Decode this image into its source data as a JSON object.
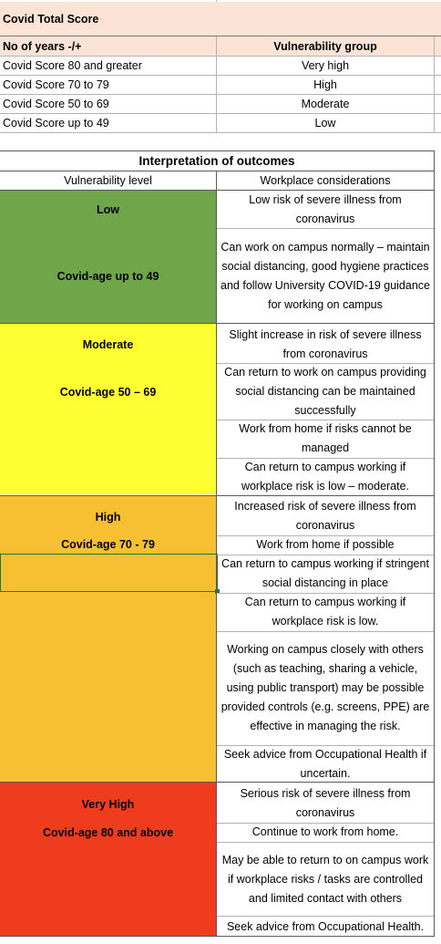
{
  "score_table": {
    "title": "Covid Total Score",
    "col1_header": "No of years -/+",
    "col2_header": "Vulnerability group",
    "rows": [
      {
        "score": "Covid Score 80 and greater",
        "group": "Very high"
      },
      {
        "score": "Covid Score 70 to 79",
        "group": "High"
      },
      {
        "score": "Covid Score 50 to 69",
        "group": "Moderate"
      },
      {
        "score": "Covid Score up to 49",
        "group": "Low"
      }
    ]
  },
  "outcomes": {
    "title": "Interpretation of outcomes",
    "col1_header": "Vulnerability level",
    "col2_header": "Workplace considerations",
    "groups": [
      {
        "level": "Low",
        "age": "Covid-age up to 49",
        "color": "#70a64a",
        "considerations": [
          "Low risk of severe illness from coronavirus",
          "Can work on campus normally – maintain social distancing, good hygiene practices and follow University COVID-19 guidance for working on campus"
        ]
      },
      {
        "level": "Moderate",
        "age": "Covid-age 50 – 69",
        "color": "#ffff32",
        "considerations": [
          "Slight increase in risk of severe illness from coronavirus",
          "Can return to work on campus providing social distancing can be maintained successfully",
          "Work from home if risks cannot be managed",
          "Can return to campus working if workplace risk is low – moderate."
        ]
      },
      {
        "level": "High",
        "age": "Covid-age 70 - 79",
        "color": "#f7c032",
        "considerations": [
          "Increased risk of severe illness from coronavirus",
          "Work from home if possible",
          "Can return to campus working if stringent social distancing in place",
          "Can return to campus working if workplace risk is low.",
          "Working on campus closely with others (such as teaching, sharing a vehicle, using public transport) may be possible provided controls (e.g. screens, PPE) are effective in managing the risk.",
          "Seek advice from Occupational Health if uncertain."
        ]
      },
      {
        "level": "Very High",
        "age": "Covid-age 80 and above",
        "color": "#f03c1e",
        "considerations": [
          "Serious risk of severe illness from coronavirus",
          "Continue to work from home.",
          "May be able to return to on campus work if workplace risks / tasks are controlled and limited contact with others",
          "Seek advice from Occupational Health."
        ]
      }
    ]
  }
}
